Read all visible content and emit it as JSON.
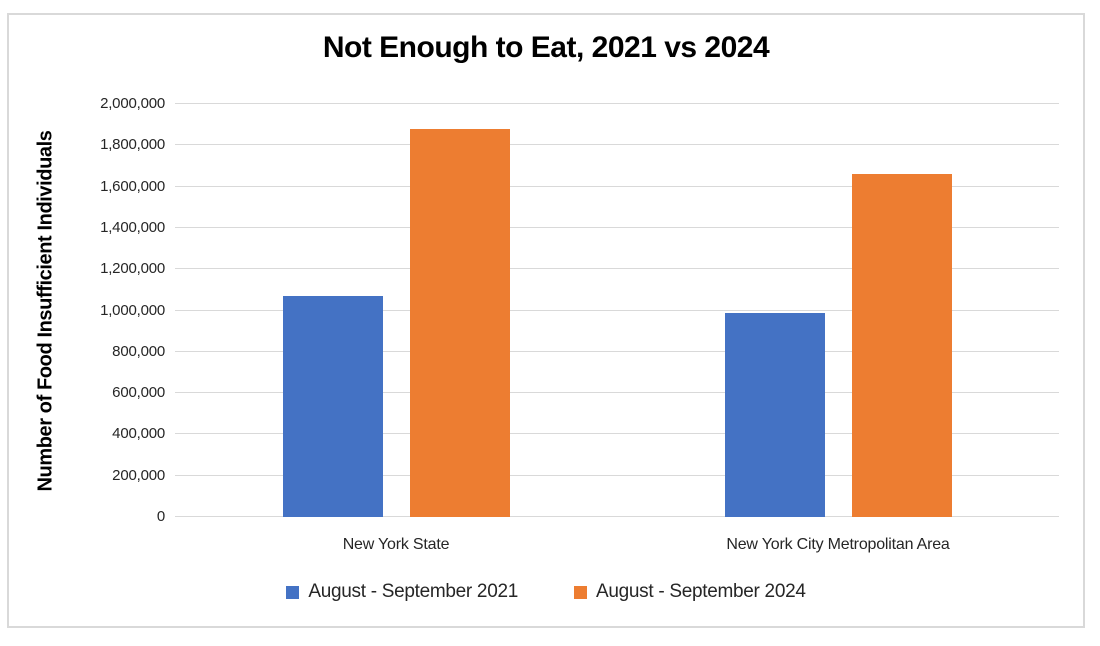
{
  "colors": {
    "frame_border": "#d9d9d9",
    "gridline": "#d9d9d9",
    "series_2021": "#4472C4",
    "series_2024": "#ED7D31"
  },
  "chart_data": {
    "type": "bar",
    "title": "Not Enough to Eat, 2021 vs 2024",
    "ylabel": "Number of Food Insufficient Individuals",
    "xlabel": "",
    "categories": [
      "New York State",
      "New York City Metropolitan Area"
    ],
    "series": [
      {
        "name": "August - September 2021",
        "color": "#4472C4",
        "values": [
          1070000,
          990000
        ]
      },
      {
        "name": "August - September 2024",
        "color": "#ED7D31",
        "values": [
          1880000,
          1660000
        ]
      }
    ],
    "ylim": [
      0,
      2000000
    ],
    "ytick_step": 200000,
    "ytick_labels": [
      "0",
      "200,000",
      "400,000",
      "600,000",
      "800,000",
      "1,000,000",
      "1,200,000",
      "1,400,000",
      "1,600,000",
      "1,800,000",
      "2,000,000"
    ],
    "grid": true,
    "legend_position": "bottom"
  }
}
